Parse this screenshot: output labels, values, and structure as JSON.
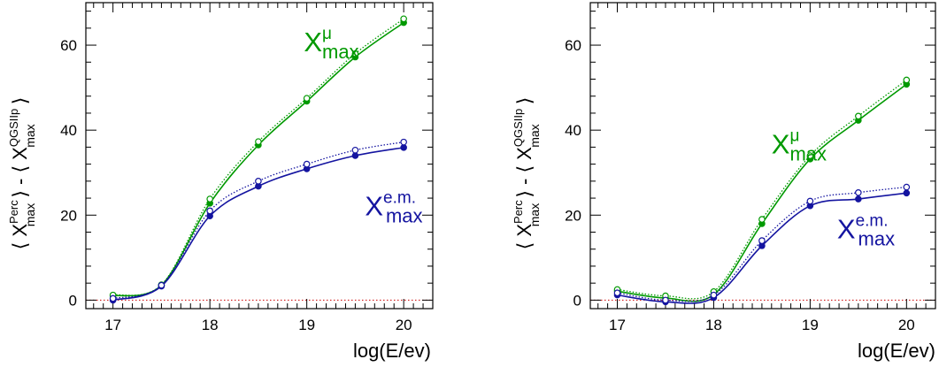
{
  "chart_data": [
    {
      "type": "line",
      "xlabel": "log(E/ev)",
      "ylabel": {
        "open": "⟨",
        "close": "⟩",
        "minus": "-",
        "left": {
          "base": "X",
          "sup": "Perc",
          "sub": "max"
        },
        "right": {
          "base": "X",
          "sup": "QGSIIp",
          "sub": "max"
        }
      },
      "xlim": [
        16.72,
        20.3
      ],
      "ylim": [
        -2,
        70
      ],
      "xticks": [
        17,
        18,
        19,
        20
      ],
      "yticks": [
        0,
        20,
        40,
        60
      ],
      "reference_line_y": 0,
      "series": [
        {
          "color": "#009900",
          "filled": true,
          "style": "solid",
          "x": [
            17,
            17.5,
            18,
            18.5,
            19,
            19.5,
            20
          ],
          "y": [
            1.0,
            3.5,
            22.8,
            36.5,
            46.8,
            57.2,
            65.3
          ]
        },
        {
          "color": "#009900",
          "filled": false,
          "style": "dotted",
          "x": [
            17,
            17.5,
            18,
            18.5,
            19,
            19.5,
            20
          ],
          "y": [
            1.2,
            3.6,
            23.8,
            37.3,
            47.5,
            58.0,
            66.2
          ]
        },
        {
          "color": "#1414a0",
          "filled": true,
          "style": "solid",
          "x": [
            17,
            17.5,
            18,
            18.5,
            19,
            19.5,
            20
          ],
          "y": [
            0.0,
            3.3,
            19.8,
            26.8,
            30.9,
            34.0,
            35.9
          ]
        },
        {
          "color": "#1414a0",
          "filled": false,
          "style": "dotted",
          "x": [
            17,
            17.5,
            18,
            18.5,
            19,
            19.5,
            20
          ],
          "y": [
            0.4,
            3.5,
            21.0,
            28.0,
            32.0,
            35.3,
            37.2
          ]
        }
      ],
      "annotations": [
        {
          "base": "X",
          "sup": "μ",
          "sub": "max",
          "color": "#009900",
          "x": 18.97,
          "y": 58.6
        },
        {
          "base": "X",
          "sup": "e.m.",
          "sub": "max",
          "color": "#1414a0",
          "x": 19.6,
          "y": 20.0
        }
      ]
    },
    {
      "type": "line",
      "xlabel": "log(E/ev)",
      "ylabel": {
        "open": "⟨",
        "close": "⟩",
        "minus": "-",
        "left": {
          "base": "X",
          "sup": "Perc",
          "sub": "max"
        },
        "right": {
          "base": "X",
          "sup": "QGSIIp",
          "sub": "max"
        }
      },
      "xlim": [
        16.72,
        20.3
      ],
      "ylim": [
        -2,
        70
      ],
      "xticks": [
        17,
        18,
        19,
        20
      ],
      "yticks": [
        0,
        20,
        40,
        60
      ],
      "reference_line_y": 0,
      "series": [
        {
          "color": "#009900",
          "filled": true,
          "style": "solid",
          "x": [
            17,
            17.5,
            18,
            18.5,
            19,
            19.5,
            20
          ],
          "y": [
            2.1,
            0.5,
            1.3,
            18.0,
            33.2,
            42.3,
            50.8
          ]
        },
        {
          "color": "#009900",
          "filled": false,
          "style": "dotted",
          "x": [
            17,
            17.5,
            18,
            18.5,
            19,
            19.5,
            20
          ],
          "y": [
            2.5,
            1.0,
            2.0,
            19.0,
            34.0,
            43.3,
            51.8
          ]
        },
        {
          "color": "#1414a0",
          "filled": true,
          "style": "solid",
          "x": [
            17,
            17.5,
            18,
            18.5,
            19,
            19.5,
            20
          ],
          "y": [
            1.2,
            -0.4,
            0.6,
            12.8,
            22.2,
            23.8,
            25.2
          ]
        },
        {
          "color": "#1414a0",
          "filled": false,
          "style": "dotted",
          "x": [
            17,
            17.5,
            18,
            18.5,
            19,
            19.5,
            20
          ],
          "y": [
            1.7,
            0.0,
            1.2,
            14.0,
            23.3,
            25.3,
            26.6
          ]
        }
      ],
      "annotations": [
        {
          "base": "X",
          "sup": "μ",
          "sub": "max",
          "color": "#009900",
          "x": 18.6,
          "y": 34.5
        },
        {
          "base": "X",
          "sup": "e.m.",
          "sub": "max",
          "color": "#1414a0",
          "x": 19.28,
          "y": 14.5
        }
      ]
    }
  ]
}
